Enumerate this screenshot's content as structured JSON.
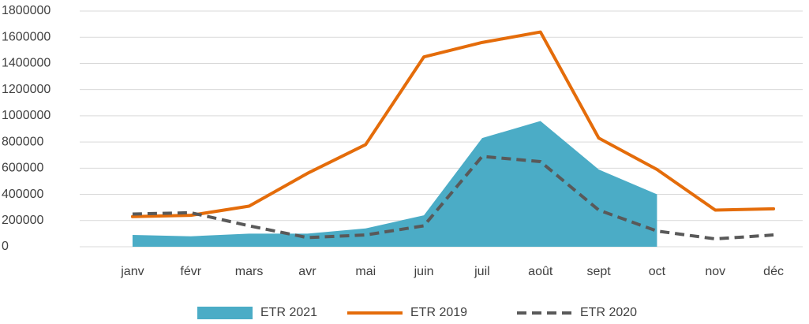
{
  "chart_data": {
    "type": "line",
    "categories": [
      "janv",
      "févr",
      "mars",
      "avr",
      "mai",
      "juin",
      "juil",
      "août",
      "sept",
      "oct",
      "nov",
      "déc"
    ],
    "series": [
      {
        "name": "ETR 2021",
        "color": "#4bacc6",
        "style": "area",
        "values": [
          90000,
          80000,
          100000,
          100000,
          140000,
          240000,
          830000,
          960000,
          590000,
          400000,
          null,
          null
        ]
      },
      {
        "name": "ETR 2019",
        "color": "#e46c0a",
        "style": "solid",
        "values": [
          230000,
          240000,
          310000,
          560000,
          780000,
          1450000,
          1560000,
          1640000,
          830000,
          590000,
          280000,
          290000
        ]
      },
      {
        "name": "ETR 2020",
        "color": "#595959",
        "style": "dashed",
        "values": [
          250000,
          260000,
          160000,
          70000,
          90000,
          160000,
          690000,
          650000,
          280000,
          120000,
          60000,
          90000
        ]
      }
    ],
    "ylim": [
      0,
      1800000
    ],
    "yticks": [
      0,
      200000,
      400000,
      600000,
      800000,
      1000000,
      1200000,
      1400000,
      1600000,
      1800000
    ],
    "grid": true,
    "legend": "bottom"
  }
}
